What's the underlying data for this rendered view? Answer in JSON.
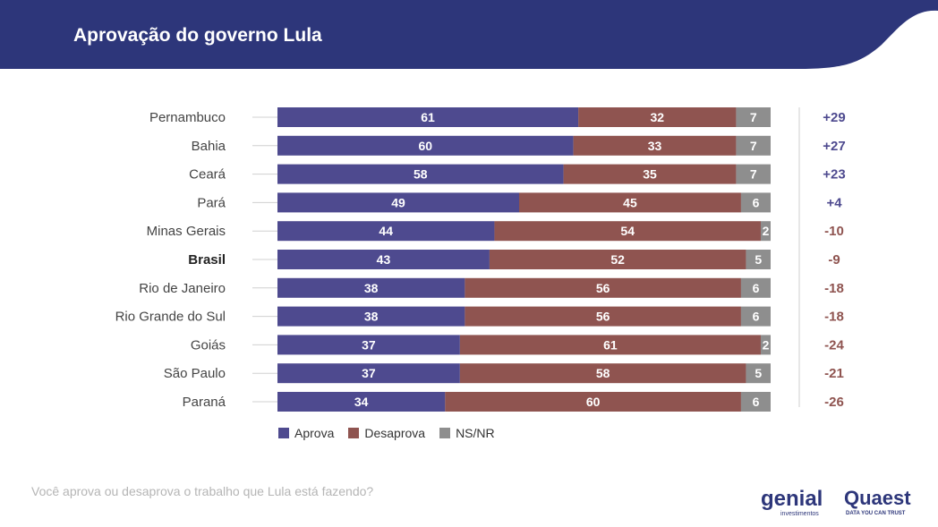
{
  "title": "Aprovação do governo Lula",
  "question": "Você aprova ou desaprova o trabalho que Lula está fazendo?",
  "colors": {
    "header_bg": "#2d367a",
    "aprova": "#4e4a8f",
    "desaprova": "#8f5450",
    "nsnr": "#8e8e8e",
    "positive_diff": "#4e4a8f",
    "negative_diff": "#8f5450"
  },
  "legend": [
    "Aprova",
    "Desaprova",
    "NS/NR"
  ],
  "logos": {
    "genial_name": "genial",
    "genial_sub": "investimentos",
    "quaest_name": "Quaest",
    "quaest_sub": "DATA YOU CAN TRUST"
  },
  "chart_data": {
    "type": "bar",
    "orientation": "horizontal",
    "stacked": true,
    "normalized": "percent",
    "categories": [
      "Pernambuco",
      "Bahia",
      "Ceará",
      "Pará",
      "Minas Gerais",
      "Brasil",
      "Rio de Janeiro",
      "Rio Grande do Sul",
      "Goiás",
      "São Paulo",
      "Paraná"
    ],
    "highlight_category": "Brasil",
    "series": [
      {
        "name": "Aprova",
        "values": [
          61,
          60,
          58,
          49,
          44,
          43,
          38,
          38,
          37,
          37,
          34
        ]
      },
      {
        "name": "Desaprova",
        "values": [
          32,
          33,
          35,
          45,
          54,
          52,
          56,
          56,
          61,
          58,
          60
        ]
      },
      {
        "name": "NS/NR",
        "values": [
          7,
          7,
          7,
          6,
          2,
          5,
          6,
          6,
          2,
          5,
          6
        ]
      }
    ],
    "differences": [
      "+29",
      "+27",
      "+23",
      "+4",
      "-10",
      "-9",
      "-18",
      "-18",
      "-24",
      "-21",
      "-26"
    ],
    "legend_position": "bottom-left",
    "grid": false
  }
}
